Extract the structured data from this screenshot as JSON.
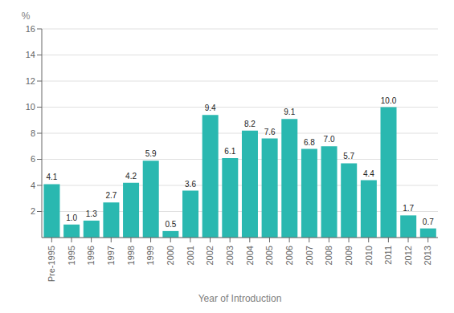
{
  "chart_data": {
    "type": "bar",
    "categories": [
      "Pre-1995",
      "1995",
      "1996",
      "1997",
      "1998",
      "1999",
      "2000",
      "2001",
      "2002",
      "2003",
      "2004",
      "2005",
      "2006",
      "2007",
      "2008",
      "2009",
      "2010",
      "2011",
      "2012",
      "2013"
    ],
    "values": [
      4.1,
      1.0,
      1.3,
      2.7,
      4.2,
      5.9,
      0.5,
      3.6,
      9.4,
      6.1,
      8.2,
      7.6,
      9.1,
      6.8,
      7.0,
      5.7,
      4.4,
      10.0,
      1.7,
      0.7
    ],
    "value_labels": [
      "4.1",
      "1.0",
      "1.3",
      "2.7",
      "4.2",
      "5.9",
      "0.5",
      "3.6",
      "9.4",
      "6.1",
      "8.2",
      "7.6",
      "9.1",
      "6.8",
      "7.0",
      "5.7",
      "4.4",
      "10.0",
      "1.7",
      "0.7"
    ],
    "color": "#2ab8b0",
    "xlabel": "Year of Introduction",
    "ylabel": "%",
    "ylim": [
      0,
      16
    ],
    "yticks": [
      2,
      4,
      6,
      8,
      10,
      12,
      14,
      16
    ],
    "grid": true,
    "data_labels": true
  }
}
